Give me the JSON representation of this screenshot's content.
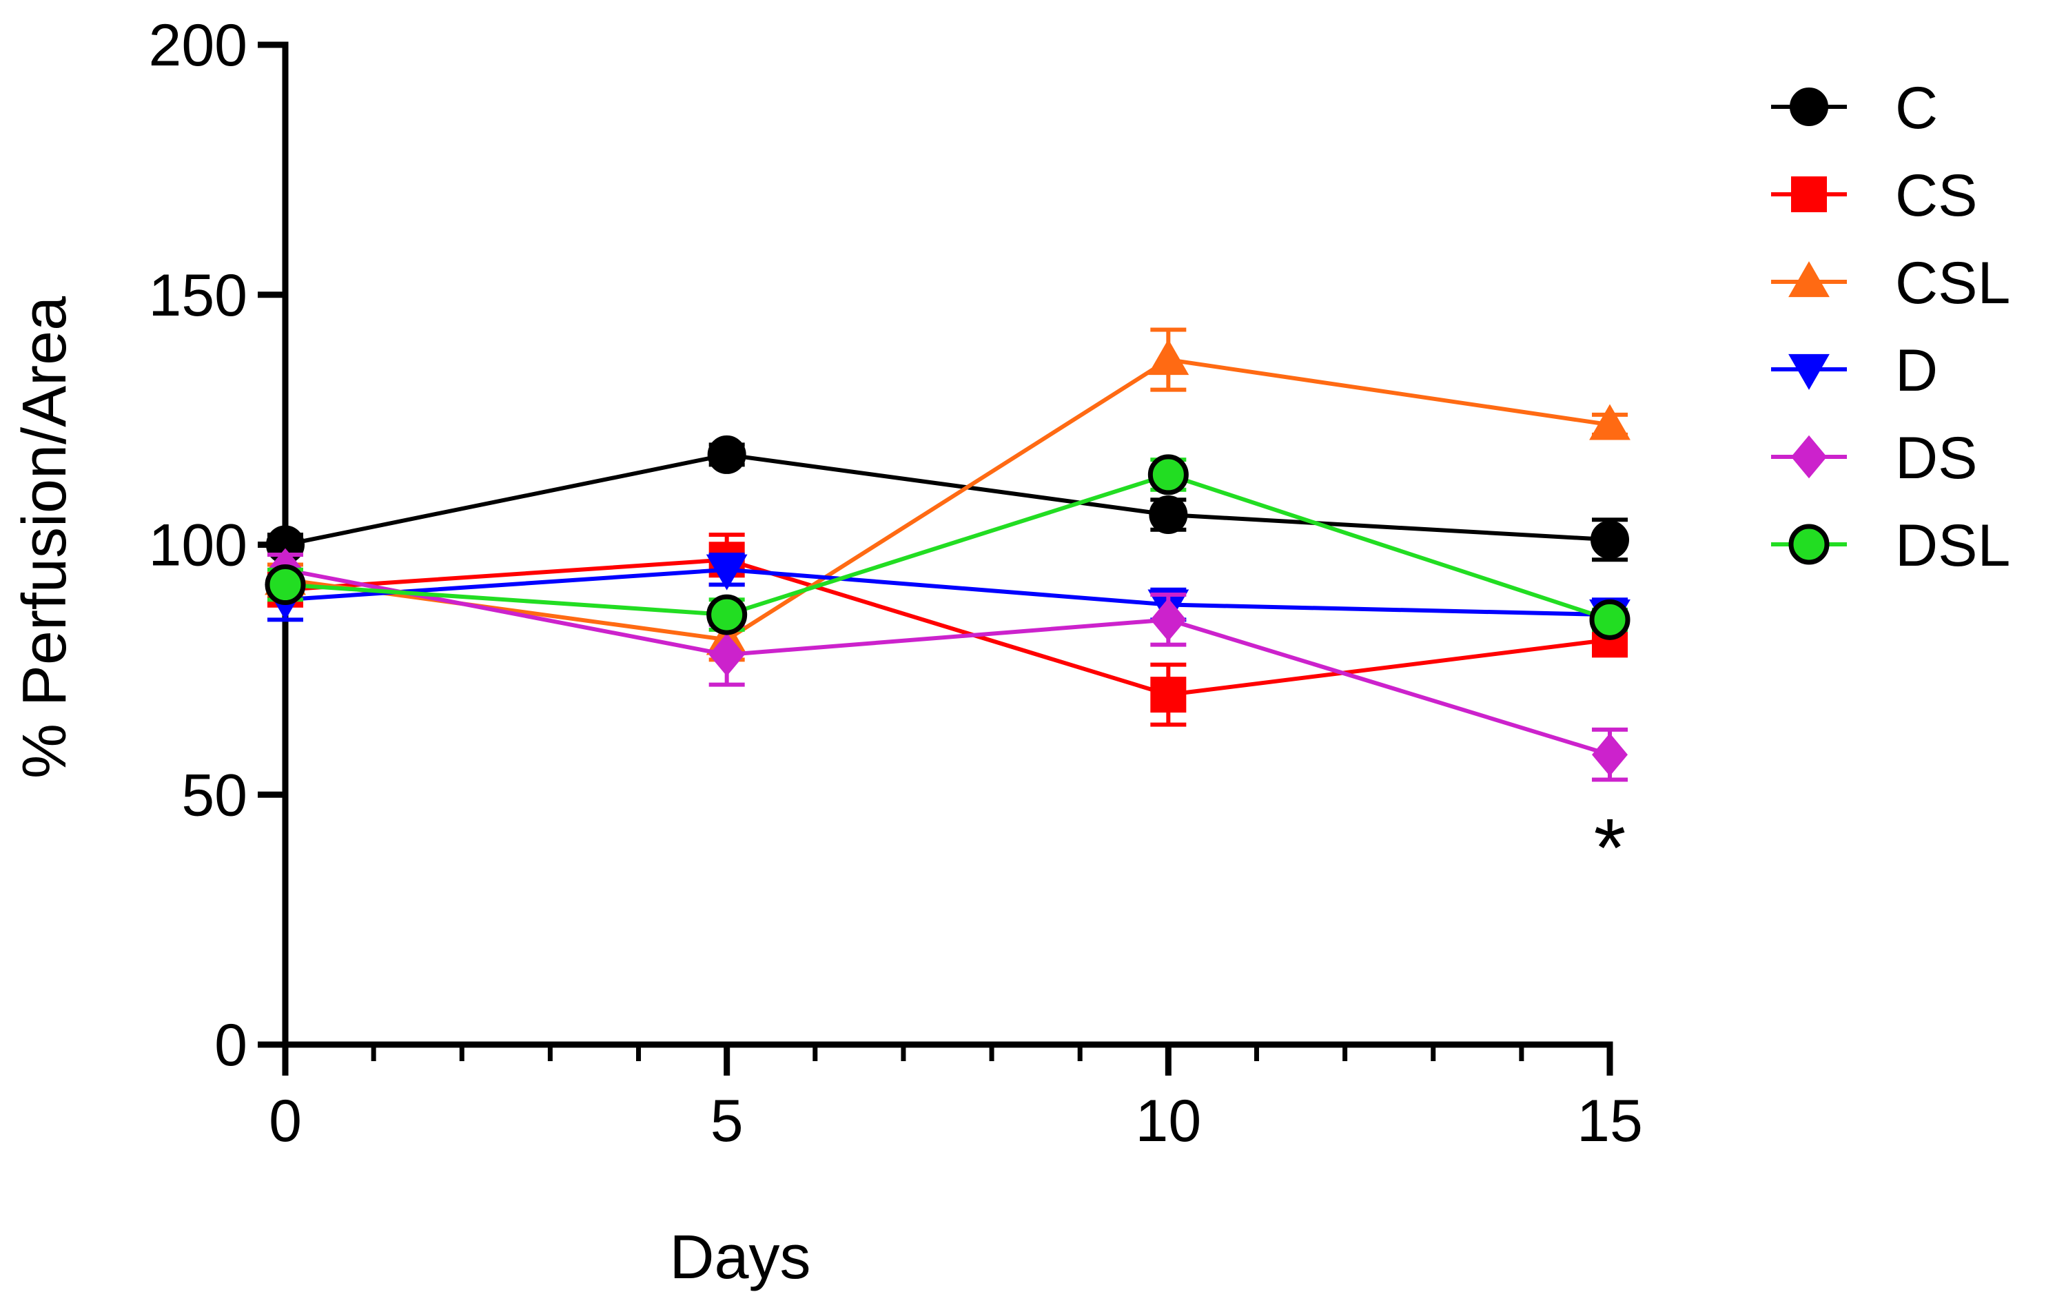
{
  "chart_data": {
    "type": "line",
    "title": "",
    "xlabel": "Days",
    "ylabel": "% Perfusion/Area",
    "xlim": [
      0,
      15
    ],
    "ylim": [
      0,
      200
    ],
    "xticks": [
      0,
      5,
      10,
      15
    ],
    "yticks": [
      0,
      50,
      100,
      150,
      200
    ],
    "x_minor_step": 1,
    "x": [
      0,
      5,
      10,
      15
    ],
    "series": [
      {
        "name": "C",
        "color": "#000000",
        "marker": "circle",
        "values": [
          100,
          118,
          106,
          101
        ],
        "errors": [
          2,
          2,
          3,
          4
        ]
      },
      {
        "name": "CS",
        "color": "#ff0000",
        "marker": "square",
        "values": [
          91,
          97,
          70,
          81
        ],
        "errors": [
          3,
          5,
          6,
          3
        ]
      },
      {
        "name": "CSL",
        "color": "#ff6a13",
        "marker": "triangle-up",
        "values": [
          93,
          81,
          137,
          124
        ],
        "errors": [
          3,
          4,
          6,
          2
        ]
      },
      {
        "name": "D",
        "color": "#0000ff",
        "marker": "triangle-down",
        "values": [
          89,
          95,
          88,
          86
        ],
        "errors": [
          4,
          3,
          3,
          3
        ]
      },
      {
        "name": "DS",
        "color": "#cc22cc",
        "marker": "diamond",
        "values": [
          95,
          78,
          85,
          58
        ],
        "errors": [
          3,
          6,
          5,
          5
        ]
      },
      {
        "name": "DSL",
        "color": "#22dd22",
        "marker": "circle-outline",
        "values": [
          92,
          86,
          114,
          85
        ],
        "errors": [
          3,
          3,
          3,
          2
        ]
      }
    ],
    "annotations": [
      {
        "text": "*",
        "x": 15,
        "y": 42
      }
    ],
    "legend_position": "right"
  }
}
